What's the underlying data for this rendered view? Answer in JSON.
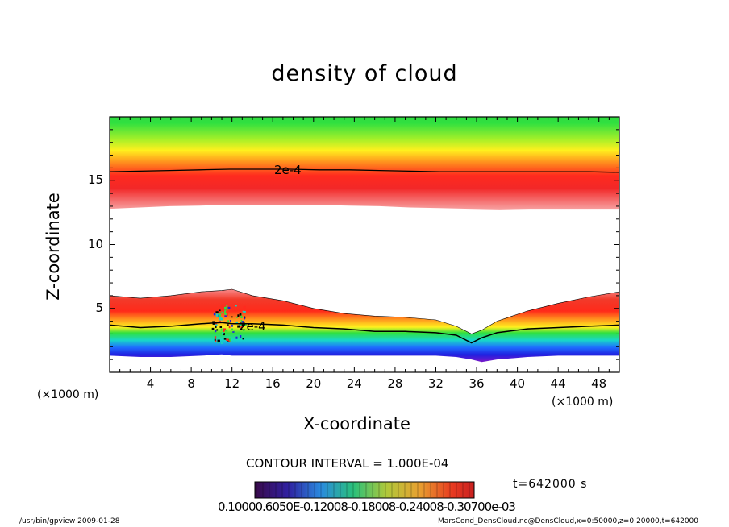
{
  "chart_data": {
    "type": "heatmap",
    "title": "density of cloud",
    "xlabel": "X-coordinate",
    "ylabel": "Z-coordinate",
    "x_unit": "(×1000 m)",
    "y_unit": "(×1000 m)",
    "xlim": [
      0,
      50
    ],
    "ylim": [
      0,
      20
    ],
    "x_ticks": [
      "4",
      "8",
      "12",
      "16",
      "20",
      "24",
      "28",
      "32",
      "36",
      "40",
      "44",
      "48"
    ],
    "y_ticks": [
      "5",
      "10",
      "15"
    ],
    "contour_interval": "CONTOUR INTERVAL = 1.000E-04",
    "contour_labels": [
      "2e-4",
      "2e-4"
    ],
    "colorbar_ticks": "0.10000.6050E-0.12008-0.18008-0.24008-0.30700e-03",
    "time_label": "t=642000 s",
    "upper_layer": {
      "bottom_km": [
        12.8,
        12.9,
        13.0,
        13.05,
        13.1,
        13.1,
        13.1,
        13.1,
        13.05,
        13.0,
        12.9,
        12.85,
        12.8,
        12.75,
        12.8,
        12.8,
        12.8,
        12.8
      ],
      "contour_2e4_km": [
        15.7,
        15.75,
        15.8,
        15.85,
        15.9,
        15.9,
        15.9,
        15.85,
        15.85,
        15.8,
        15.75,
        15.7,
        15.7,
        15.7,
        15.7,
        15.7,
        15.7,
        15.65
      ]
    },
    "lower_layer": {
      "x_km": [
        0,
        3,
        6,
        9,
        11,
        12,
        14,
        17,
        20,
        23,
        26,
        29,
        32,
        34,
        35.5,
        36.5,
        38,
        41,
        44,
        47,
        50
      ],
      "top_km": [
        6.0,
        5.8,
        6.0,
        6.3,
        6.4,
        6.5,
        6.0,
        5.6,
        5.0,
        4.6,
        4.4,
        4.3,
        4.1,
        3.6,
        3.0,
        3.3,
        4.0,
        4.8,
        5.4,
        5.9,
        6.3
      ],
      "contour_2e4_km": [
        3.7,
        3.5,
        3.6,
        3.8,
        3.9,
        3.8,
        3.8,
        3.7,
        3.5,
        3.4,
        3.2,
        3.2,
        3.1,
        2.9,
        2.3,
        2.7,
        3.1,
        3.4,
        3.5,
        3.6,
        3.7
      ],
      "bottom_km": [
        1.3,
        1.2,
        1.2,
        1.3,
        1.4,
        1.3,
        1.3,
        1.3,
        1.3,
        1.3,
        1.3,
        1.3,
        1.3,
        1.2,
        1.0,
        0.8,
        1.0,
        1.2,
        1.3,
        1.3,
        1.3
      ]
    }
  },
  "footer_left": "/usr/bin/gpview   2009-01-28",
  "footer_right": "MarsCond_DensCloud.nc@DensCloud,x=0:50000,z=0:20000,t=642000"
}
